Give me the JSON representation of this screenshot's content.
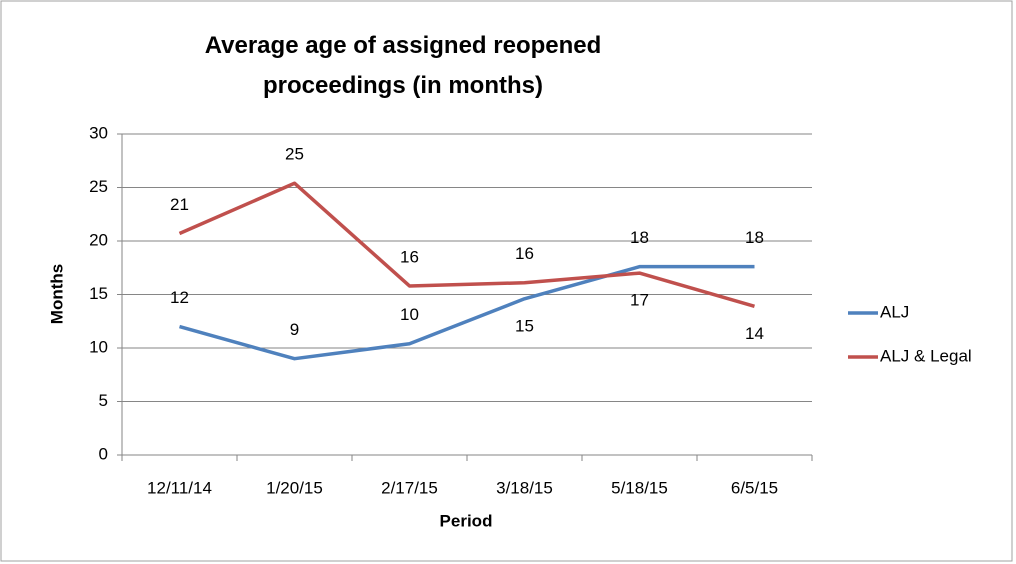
{
  "chart_data": {
    "type": "line",
    "title": "Average age of assigned reopened proceedings (in months)",
    "x_label": "Period",
    "y_label": "Months",
    "categories": [
      "12/11/14",
      "1/20/15",
      "2/17/15",
      "3/18/15",
      "5/18/15",
      "6/5/15"
    ],
    "series": [
      {
        "name": "ALJ",
        "color": "#4f81bd",
        "values": [
          12,
          9,
          10.4,
          14.6,
          17.6,
          17.6
        ],
        "value_labels": [
          "12",
          "9",
          "10",
          "15",
          "18",
          "18"
        ]
      },
      {
        "name": "ALJ & Legal",
        "color": "#c0504d",
        "values": [
          20.7,
          25.4,
          15.8,
          16.1,
          17,
          13.9
        ],
        "value_labels": [
          "21",
          "25",
          "16",
          "16",
          "17",
          "14"
        ]
      }
    ],
    "ylim": [
      0,
      30
    ],
    "yticks": [
      0,
      5,
      10,
      15,
      20,
      25,
      30
    ],
    "grid": true,
    "legend": "right"
  }
}
